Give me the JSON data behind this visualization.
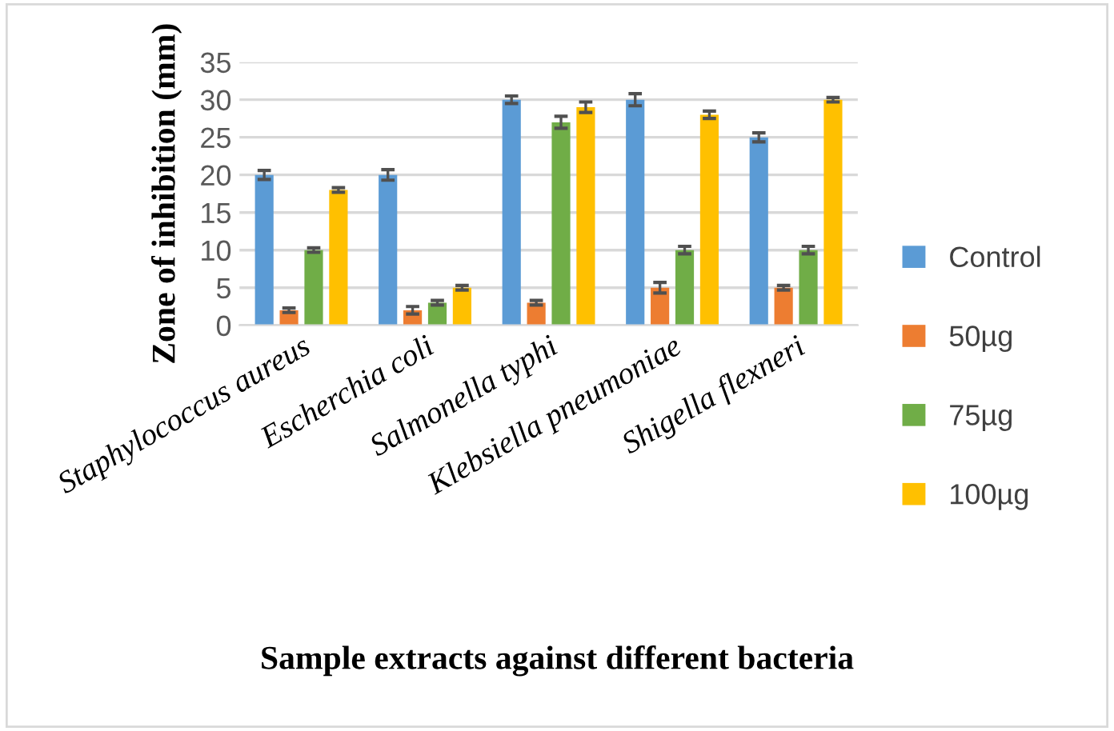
{
  "chart_data": {
    "type": "bar",
    "xlabel": "Sample extracts against different bacteria",
    "ylabel": "Zone of inhibition (mm)",
    "categories": [
      "Staphylococcus aureus",
      "Escherchia coli",
      "Salmonella typhi",
      "Klebsiella pneumoniae",
      "Shigella flexneri"
    ],
    "series": [
      {
        "name": "Control",
        "color": "#5b9bd5",
        "values": [
          20,
          20,
          30,
          30,
          25
        ],
        "errors": [
          0.6,
          0.7,
          0.5,
          0.8,
          0.6
        ]
      },
      {
        "name": "50µg",
        "color": "#ed7d31",
        "values": [
          2,
          2,
          3,
          5,
          5
        ],
        "errors": [
          0.3,
          0.5,
          0.3,
          0.7,
          0.3
        ]
      },
      {
        "name": "75µg",
        "color": "#70ad47",
        "values": [
          10,
          3,
          27,
          10,
          10
        ],
        "errors": [
          0.3,
          0.3,
          0.8,
          0.5,
          0.5
        ]
      },
      {
        "name": "100µg",
        "color": "#ffc000",
        "values": [
          18,
          5,
          29,
          28,
          30
        ],
        "errors": [
          0.3,
          0.3,
          0.7,
          0.5,
          0.3
        ]
      }
    ],
    "ylim": [
      0,
      35
    ],
    "yticks": [
      0,
      5,
      10,
      15,
      20,
      25,
      30,
      35
    ],
    "grid": "y",
    "legend": "right"
  }
}
